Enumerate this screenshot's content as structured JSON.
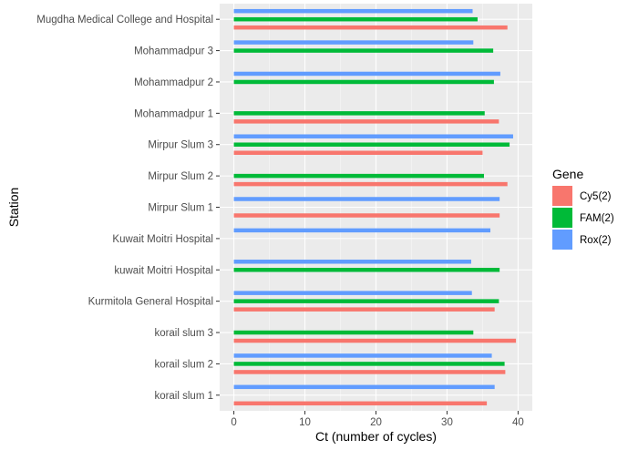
{
  "chart_data": {
    "type": "bar",
    "orientation": "horizontal",
    "xlabel": "Ct (number of cycles)",
    "ylabel": "Station",
    "xlim": [
      -2,
      42
    ],
    "xticks": [
      0,
      10,
      20,
      30,
      40
    ],
    "grid": true,
    "legend": {
      "title": "Gene",
      "placement": "right"
    },
    "categories": [
      "korail slum 1",
      "korail slum 2",
      "korail slum 3",
      "Kurmitola General Hospital",
      "kuwait Moitri Hospital",
      "Kuwait Moitri Hospital",
      "Mirpur Slum 1",
      "Mirpur Slum 2",
      "Mirpur Slum 3",
      "Mohammadpur 1",
      "Mohammadpur 2",
      "Mohammadpur 3",
      "Mugdha Medical College and Hospital"
    ],
    "series": [
      {
        "name": "Cy5(2)",
        "color": "#F8766D",
        "values": [
          35.6,
          38.2,
          39.7,
          36.7,
          null,
          null,
          37.4,
          38.5,
          35.0,
          37.3,
          null,
          null,
          38.5
        ]
      },
      {
        "name": "FAM(2)",
        "color": "#00BA38",
        "values": [
          null,
          38.1,
          33.7,
          37.3,
          37.4,
          null,
          null,
          35.2,
          38.8,
          35.3,
          36.6,
          36.5,
          34.3
        ]
      },
      {
        "name": "Rox(2)",
        "color": "#619CFF",
        "values": [
          36.7,
          36.3,
          null,
          33.5,
          33.4,
          36.1,
          37.4,
          null,
          39.3,
          null,
          37.5,
          33.7,
          33.6
        ]
      }
    ]
  }
}
